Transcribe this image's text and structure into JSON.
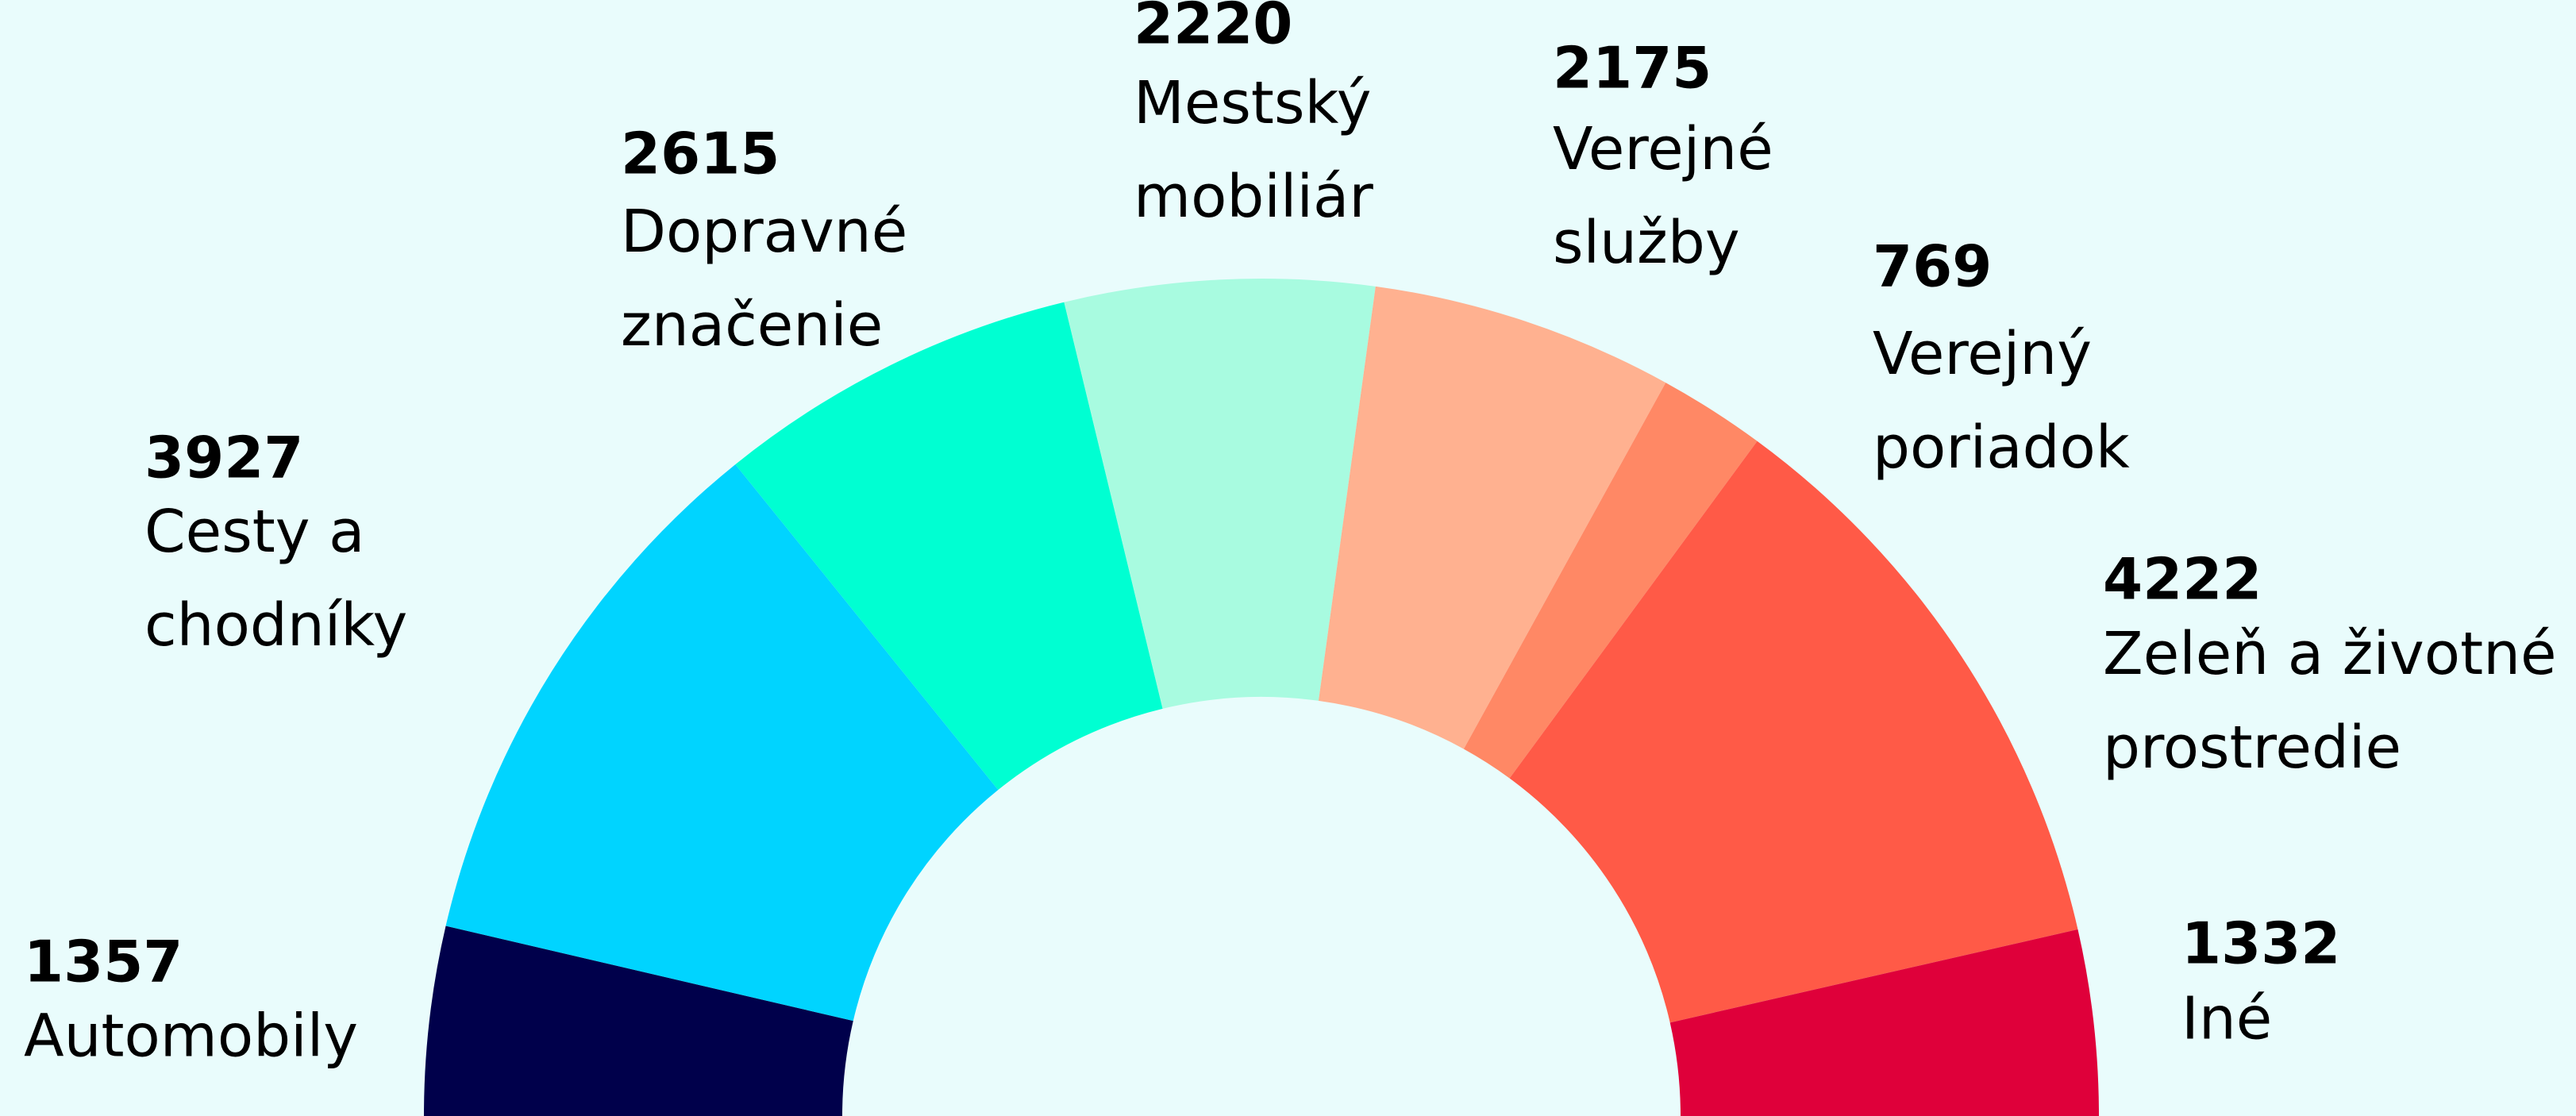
{
  "chart_data": {
    "type": "semi-donut",
    "categories": [
      "Automobily",
      "Cesty a chodníky",
      "Dopravné značenie",
      "Mestský mobiliár",
      "Verejné služby",
      "Verejný poriadok",
      "Zeleň a životné prostredie",
      "Iné"
    ],
    "values": [
      1357,
      3927,
      2615,
      2220,
      2175,
      769,
      4222,
      1332
    ],
    "colors": [
      "#00004b",
      "#00d4ff",
      "#00ffd2",
      "#a8fbe0",
      "#ffb190",
      "#ff8865",
      "#ff5a47",
      "#df003a"
    ]
  }
}
